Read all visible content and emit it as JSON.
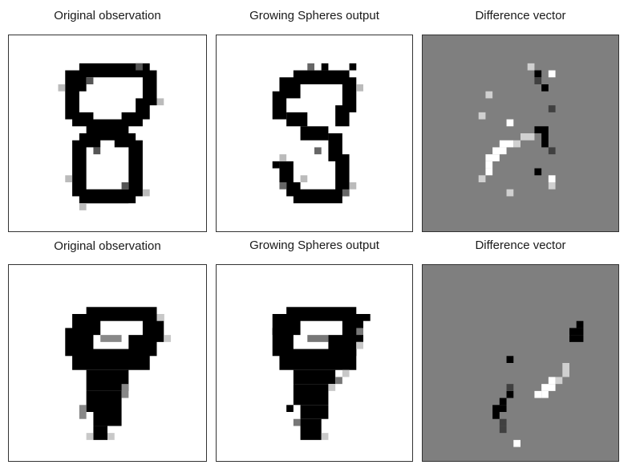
{
  "rows": [
    {
      "panels": [
        {
          "title": "Original observation",
          "kind": "digit-8-original"
        },
        {
          "title": "Growing Spheres output",
          "kind": "digit-8-modified"
        },
        {
          "title": "Difference vector",
          "kind": "difference-8"
        }
      ]
    },
    {
      "panels": [
        {
          "title": "Original observation",
          "kind": "digit-9-original"
        },
        {
          "title": "Growing Spheres output",
          "kind": "digit-9-modified"
        },
        {
          "title": "Difference vector",
          "kind": "difference-9"
        }
      ]
    }
  ],
  "colors": {
    "ink": "#000000",
    "paper": "#ffffff",
    "neutral": "#7f7f7f"
  }
}
